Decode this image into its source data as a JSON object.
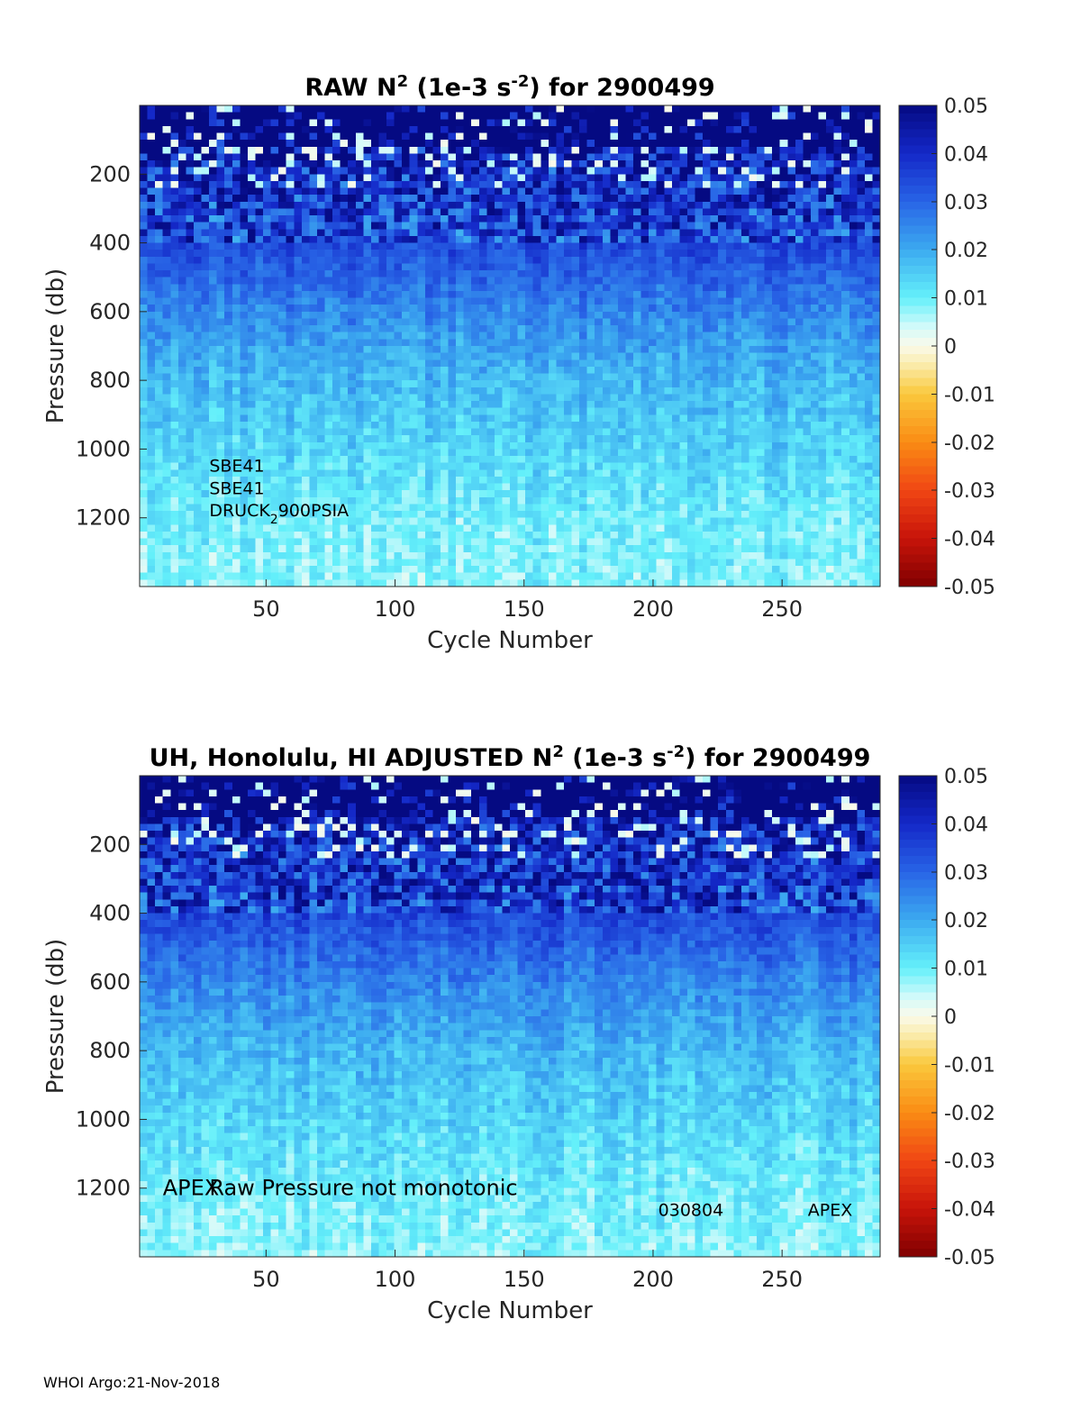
{
  "footer": "WHOI Argo:21-Nov-2018",
  "chart_data": [
    {
      "type": "heatmap",
      "title": "RAW N² (1e-3 s⁻²) for 2900499",
      "title_parts": {
        "pre": "RAW N",
        "sup1": "2",
        "mid": " (1e-3 s",
        "sup2": "-2",
        "post": ") for 2900499"
      },
      "xlabel": "Cycle Number",
      "ylabel": "Pressure (db)",
      "xlim": [
        1,
        288
      ],
      "ylim": [
        1400,
        0
      ],
      "xticks": [
        50,
        100,
        150,
        200,
        250
      ],
      "yticks": [
        200,
        400,
        600,
        800,
        1000,
        1200
      ],
      "colorbar": {
        "min": -0.05,
        "max": 0.05,
        "ticks": [
          0.05,
          0.04,
          0.03,
          0.02,
          0.01,
          0,
          -0.01,
          -0.02,
          -0.03,
          -0.04,
          -0.05
        ],
        "colormap": "jet-like with white near 0"
      },
      "annotations": [
        {
          "text": "SBE41",
          "x_cycle": 28,
          "y_db": 1045
        },
        {
          "text": "SBE41",
          "x_cycle": 28,
          "y_db": 1110
        },
        {
          "text": "DRUCK",
          "sub": "2",
          "post": "900PSIA",
          "x_cycle": 28,
          "y_db": 1175
        }
      ],
      "depth_profile": [
        {
          "p": 50,
          "value": 0.05
        },
        {
          "p": 200,
          "value": 0.04
        },
        {
          "p": 400,
          "value": 0.035
        },
        {
          "p": 600,
          "value": 0.025
        },
        {
          "p": 800,
          "value": 0.018
        },
        {
          "p": 1000,
          "value": 0.014
        },
        {
          "p": 1200,
          "value": 0.01
        },
        {
          "p": 1400,
          "value": 0.008
        }
      ]
    },
    {
      "type": "heatmap",
      "title": "UH, Honolulu, HI  ADJUSTED N² (1e-3 s⁻²) for 2900499",
      "title_parts": {
        "pre": "UH, Honolulu, HI  ADJUSTED N",
        "sup1": "2",
        "mid": " (1e-3 s",
        "sup2": "-2",
        "post": ") for 2900499"
      },
      "xlabel": "Cycle Number",
      "ylabel": "Pressure (db)",
      "xlim": [
        1,
        288
      ],
      "ylim": [
        1400,
        0
      ],
      "xticks": [
        50,
        100,
        150,
        200,
        250
      ],
      "yticks": [
        200,
        400,
        600,
        800,
        1000,
        1200
      ],
      "colorbar": {
        "min": -0.05,
        "max": 0.05,
        "ticks": [
          0.05,
          0.04,
          0.03,
          0.02,
          0.01,
          0,
          -0.01,
          -0.02,
          -0.03,
          -0.04,
          -0.05
        ],
        "colormap": "jet-like with white near 0"
      },
      "annotations": [
        {
          "text": "APEX",
          "x_cycle": 10,
          "y_db": 1200
        },
        {
          "text": "Raw Pressure not monotonic",
          "x_cycle": 28,
          "y_db": 1200
        },
        {
          "text": "030804",
          "x_cycle": 202,
          "y_db": 1260
        },
        {
          "text": "APEX",
          "x_cycle": 260,
          "y_db": 1260
        }
      ],
      "depth_profile": [
        {
          "p": 50,
          "value": 0.05
        },
        {
          "p": 200,
          "value": 0.04
        },
        {
          "p": 400,
          "value": 0.035
        },
        {
          "p": 600,
          "value": 0.025
        },
        {
          "p": 800,
          "value": 0.018
        },
        {
          "p": 1000,
          "value": 0.014
        },
        {
          "p": 1200,
          "value": 0.01
        },
        {
          "p": 1400,
          "value": 0.008
        }
      ]
    }
  ]
}
